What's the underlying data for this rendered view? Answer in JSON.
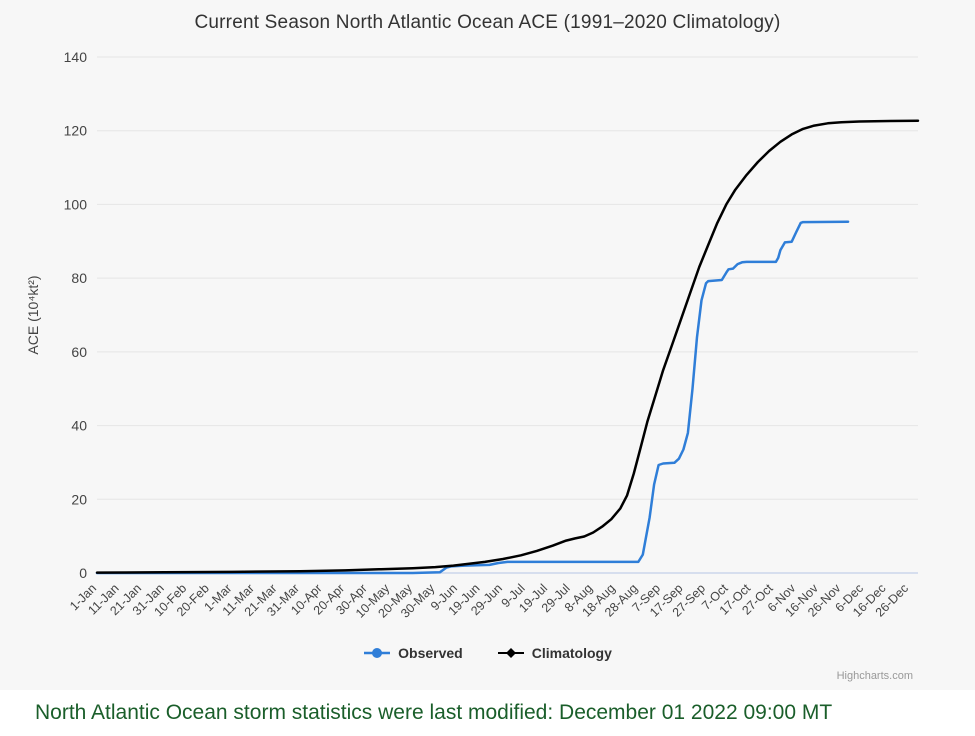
{
  "page": {
    "background": "#f7f7f7",
    "footer_background": "#ffffff"
  },
  "chart_data": {
    "type": "line",
    "title": "Current Season North Atlantic Ocean ACE (1991–2020 Climatology)",
    "ylabel": "ACE (10⁴kt²)",
    "ylim": [
      0,
      140
    ],
    "yticks": [
      0,
      20,
      40,
      60,
      80,
      100,
      120,
      140
    ],
    "x_unit": "day-of-year",
    "xlim": [
      0,
      364
    ],
    "xtick_days": [
      0,
      10,
      20,
      30,
      40,
      50,
      60,
      70,
      80,
      90,
      100,
      110,
      120,
      130,
      140,
      150,
      160,
      170,
      180,
      190,
      200,
      210,
      220,
      230,
      240,
      250,
      260,
      270,
      280,
      290,
      300,
      310,
      320,
      330,
      340,
      350,
      360
    ],
    "xtick_labels": [
      "1-Jan",
      "11-Jan",
      "21-Jan",
      "31-Jan",
      "10-Feb",
      "20-Feb",
      "1-Mar",
      "11-Mar",
      "21-Mar",
      "31-Mar",
      "10-Apr",
      "20-Apr",
      "30-Apr",
      "10-May",
      "20-May",
      "30-May",
      "9-Jun",
      "19-Jun",
      "29-Jun",
      "9-Jul",
      "19-Jul",
      "29-Jul",
      "8-Aug",
      "18-Aug",
      "28-Aug",
      "7-Sep",
      "17-Sep",
      "27-Sep",
      "7-Oct",
      "17-Oct",
      "27-Oct",
      "6-Nov",
      "16-Nov",
      "26-Nov",
      "6-Dec",
      "16-Dec",
      "26-Dec"
    ],
    "grid": "horizontal",
    "grid_color": "#e6e6e6",
    "axis_line_color": "#ccd6eb",
    "label_color": "#555555",
    "legend_position": "bottom-center",
    "series": [
      {
        "name": "Observed",
        "color": "#2f7ed8",
        "marker": "circle",
        "points": [
          [
            0,
            0
          ],
          [
            140,
            0
          ],
          [
            152,
            0.2
          ],
          [
            155,
            1.5
          ],
          [
            157,
            1.8
          ],
          [
            163,
            2.0
          ],
          [
            174,
            2.2
          ],
          [
            178,
            2.7
          ],
          [
            182,
            3.0
          ],
          [
            240,
            3.0
          ],
          [
            242,
            5
          ],
          [
            245,
            15
          ],
          [
            247,
            24
          ],
          [
            249,
            29.3
          ],
          [
            251,
            29.7
          ],
          [
            256,
            29.9
          ],
          [
            258,
            31
          ],
          [
            260,
            33.5
          ],
          [
            262,
            38
          ],
          [
            264,
            50
          ],
          [
            266,
            64
          ],
          [
            268,
            74
          ],
          [
            270,
            78.6
          ],
          [
            271,
            79.2
          ],
          [
            277,
            79.5
          ],
          [
            279,
            81.5
          ],
          [
            280,
            82.4
          ],
          [
            282,
            82.6
          ],
          [
            284,
            83.8
          ],
          [
            286,
            84.3
          ],
          [
            288,
            84.4
          ],
          [
            301,
            84.4
          ],
          [
            302,
            85.5
          ],
          [
            303,
            87.6
          ],
          [
            305,
            89.7
          ],
          [
            308,
            89.9
          ],
          [
            310,
            92.5
          ],
          [
            312,
            95.0
          ],
          [
            313,
            95.2
          ],
          [
            333,
            95.3
          ]
        ]
      },
      {
        "name": "Climatology",
        "color": "#000000",
        "marker": "diamond",
        "points": [
          [
            0,
            0.1
          ],
          [
            30,
            0.2
          ],
          [
            60,
            0.3
          ],
          [
            90,
            0.5
          ],
          [
            110,
            0.7
          ],
          [
            125,
            1.0
          ],
          [
            140,
            1.3
          ],
          [
            150,
            1.6
          ],
          [
            158,
            2.0
          ],
          [
            165,
            2.5
          ],
          [
            172,
            3.0
          ],
          [
            180,
            3.8
          ],
          [
            188,
            4.8
          ],
          [
            195,
            6.0
          ],
          [
            202,
            7.4
          ],
          [
            208,
            8.8
          ],
          [
            212,
            9.4
          ],
          [
            216,
            9.9
          ],
          [
            220,
            11.0
          ],
          [
            224,
            12.6
          ],
          [
            228,
            14.6
          ],
          [
            232,
            17.5
          ],
          [
            235,
            21
          ],
          [
            238,
            27
          ],
          [
            241,
            34
          ],
          [
            244,
            41
          ],
          [
            247,
            47
          ],
          [
            251,
            55
          ],
          [
            255,
            62
          ],
          [
            259,
            69
          ],
          [
            263,
            76
          ],
          [
            267,
            83
          ],
          [
            271,
            89
          ],
          [
            275,
            95
          ],
          [
            279,
            100
          ],
          [
            283,
            104
          ],
          [
            288,
            108
          ],
          [
            293,
            111.5
          ],
          [
            298,
            114.5
          ],
          [
            303,
            117
          ],
          [
            308,
            119
          ],
          [
            313,
            120.5
          ],
          [
            318,
            121.4
          ],
          [
            324,
            122.0
          ],
          [
            330,
            122.3
          ],
          [
            338,
            122.5
          ],
          [
            348,
            122.6
          ],
          [
            364,
            122.7
          ]
        ]
      }
    ],
    "credit": "Highcharts.com"
  },
  "footer": {
    "text": "North Atlantic Ocean storm statistics were last modified: December 01 2022 09:00 MT",
    "color": "#1a5e2a"
  }
}
